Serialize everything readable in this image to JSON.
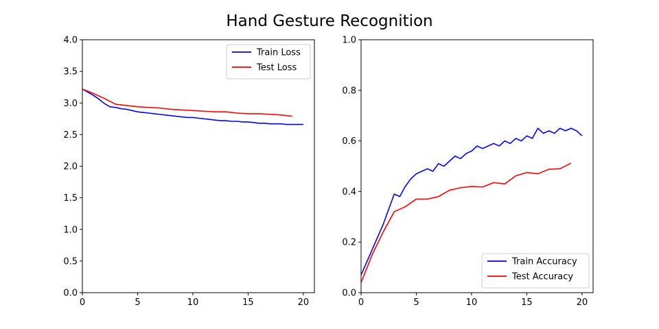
{
  "figure_title": "Hand Gesture Recognition",
  "chart_data": [
    {
      "type": "line",
      "xlim": [
        0,
        21
      ],
      "ylim": [
        0,
        4.0
      ],
      "xticks": [
        0,
        5,
        10,
        15,
        20
      ],
      "yticks": [
        0.0,
        0.5,
        1.0,
        1.5,
        2.0,
        2.5,
        3.0,
        3.5,
        4.0
      ],
      "legend_position": "top-right",
      "grid": false,
      "series": [
        {
          "name": "Train Loss",
          "color": "#0000ff",
          "x": [
            0,
            0.5,
            1,
            1.5,
            2,
            2.5,
            3,
            3.5,
            4,
            4.5,
            5,
            5.5,
            6,
            6.5,
            7,
            7.5,
            8,
            8.5,
            9,
            9.5,
            10,
            10.5,
            11,
            11.5,
            12,
            12.5,
            13,
            13.5,
            14,
            14.5,
            15,
            15.5,
            16,
            16.5,
            17,
            17.5,
            18,
            18.5,
            19,
            19.5,
            20
          ],
          "y": [
            3.22,
            3.17,
            3.12,
            3.06,
            2.99,
            2.94,
            2.93,
            2.91,
            2.9,
            2.88,
            2.86,
            2.85,
            2.84,
            2.83,
            2.82,
            2.81,
            2.8,
            2.79,
            2.78,
            2.77,
            2.77,
            2.76,
            2.75,
            2.74,
            2.73,
            2.72,
            2.72,
            2.71,
            2.71,
            2.7,
            2.7,
            2.69,
            2.68,
            2.68,
            2.67,
            2.67,
            2.67,
            2.66,
            2.66,
            2.66,
            2.66
          ]
        },
        {
          "name": "Test Loss",
          "color": "#ff0000",
          "x": [
            0,
            1,
            2,
            3,
            4,
            5,
            6,
            7,
            8,
            9,
            10,
            11,
            12,
            13,
            14,
            15,
            16,
            17,
            18,
            19
          ],
          "y": [
            3.22,
            3.15,
            3.07,
            2.98,
            2.96,
            2.94,
            2.93,
            2.92,
            2.9,
            2.89,
            2.88,
            2.87,
            2.86,
            2.86,
            2.84,
            2.83,
            2.83,
            2.82,
            2.81,
            2.79
          ]
        }
      ]
    },
    {
      "type": "line",
      "xlim": [
        0,
        21
      ],
      "ylim": [
        0,
        1.0
      ],
      "xticks": [
        0,
        5,
        10,
        15,
        20
      ],
      "yticks": [
        0.0,
        0.2,
        0.4,
        0.6,
        0.8,
        1.0
      ],
      "legend_position": "bottom-right",
      "grid": false,
      "series": [
        {
          "name": "Train Accuracy",
          "color": "#0000ff",
          "x": [
            0,
            0.5,
            1,
            1.5,
            2,
            2.5,
            3,
            3.5,
            4,
            4.5,
            5,
            5.5,
            6,
            6.5,
            7,
            7.5,
            8,
            8.5,
            9,
            9.5,
            10,
            10.5,
            11,
            11.5,
            12,
            12.5,
            13,
            13.5,
            14,
            14.5,
            15,
            15.5,
            16,
            16.5,
            17,
            17.5,
            18,
            18.5,
            19,
            19.5,
            20
          ],
          "y": [
            0.07,
            0.12,
            0.17,
            0.22,
            0.27,
            0.33,
            0.39,
            0.38,
            0.42,
            0.45,
            0.47,
            0.48,
            0.49,
            0.48,
            0.51,
            0.5,
            0.52,
            0.54,
            0.53,
            0.55,
            0.56,
            0.58,
            0.57,
            0.58,
            0.59,
            0.58,
            0.6,
            0.59,
            0.61,
            0.6,
            0.62,
            0.61,
            0.65,
            0.63,
            0.64,
            0.63,
            0.65,
            0.64,
            0.65,
            0.64,
            0.62
          ]
        },
        {
          "name": "Test Accuracy",
          "color": "#ff0000",
          "x": [
            0,
            1,
            2,
            3,
            4,
            5,
            6,
            7,
            8,
            9,
            10,
            11,
            12,
            13,
            14,
            15,
            16,
            17,
            18,
            19
          ],
          "y": [
            0.04,
            0.15,
            0.24,
            0.32,
            0.34,
            0.37,
            0.37,
            0.38,
            0.405,
            0.415,
            0.42,
            0.418,
            0.435,
            0.43,
            0.462,
            0.475,
            0.47,
            0.488,
            0.49,
            0.512
          ]
        }
      ]
    }
  ]
}
